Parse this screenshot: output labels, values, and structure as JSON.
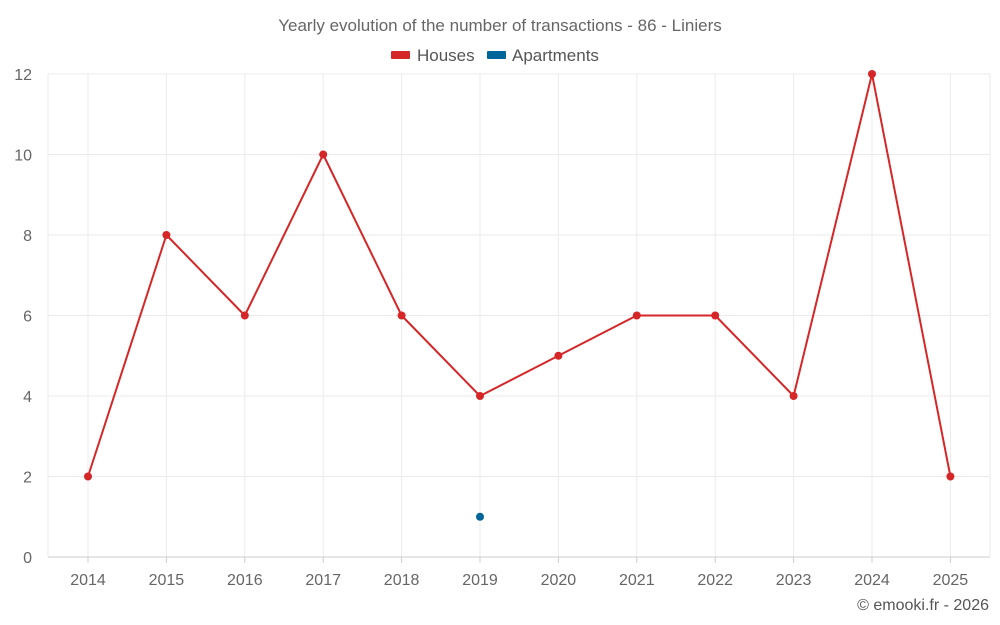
{
  "chart_data": {
    "type": "line",
    "title": "Yearly evolution of the number of transactions - 86 - Liniers",
    "x": [
      "2014",
      "2015",
      "2016",
      "2017",
      "2018",
      "2019",
      "2020",
      "2021",
      "2022",
      "2023",
      "2024",
      "2025"
    ],
    "y_ticks": [
      "0",
      "2",
      "4",
      "6",
      "8",
      "10",
      "12"
    ],
    "ylim": [
      0,
      12
    ],
    "xlabel": "",
    "ylabel": "",
    "grid": true,
    "legend_position": "top-center",
    "series": [
      {
        "name": "Houses",
        "color": "#d62728",
        "values": [
          2,
          8,
          6,
          10,
          6,
          4,
          5,
          6,
          6,
          4,
          12,
          2
        ]
      },
      {
        "name": "Apartments",
        "color": "#006699",
        "values": [
          null,
          null,
          null,
          null,
          null,
          1,
          null,
          null,
          null,
          null,
          null,
          null
        ]
      }
    ]
  },
  "credit": "© emooki.fr - 2026"
}
